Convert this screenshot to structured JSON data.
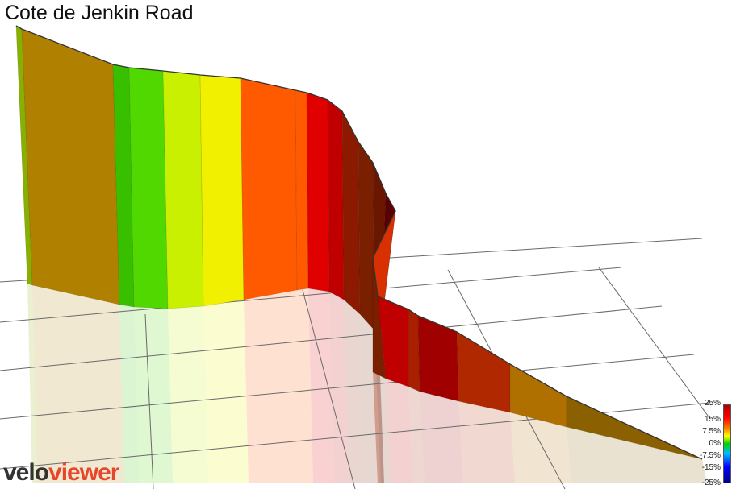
{
  "title": "Cote de Jenkin Road",
  "logo": {
    "part1": "velo",
    "part2": "viewer"
  },
  "legend": {
    "labels": [
      "25%",
      "15%",
      "7.5%",
      "0%",
      "-7.5%",
      "-15%",
      "-25%"
    ]
  },
  "chart_data": {
    "type": "area",
    "title": "Cote de Jenkin Road",
    "gradient_colors": [
      "#88b000",
      "#b08000",
      "#38c000",
      "#50d800",
      "#c8f000",
      "#f0f000",
      "#ff5a00",
      "#ff5a00",
      "#e00000",
      "#c00000",
      "#8b1a00",
      "#7a2000",
      "#6a1600",
      "#5a0000",
      "#d83000",
      "#7a2000",
      "#c00000",
      "#a82000",
      "#a00000",
      "#b02800",
      "#b07000",
      "#8b6000"
    ]
  }
}
